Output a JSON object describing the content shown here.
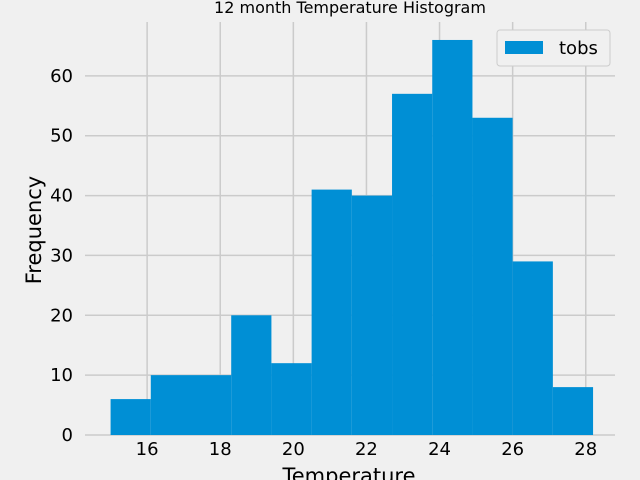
{
  "chart_data": {
    "type": "bar",
    "title": "12 month Temperature Histogram",
    "xlabel": "Temperature",
    "ylabel": "Frequency",
    "bin_edges": [
      15.0,
      16.1,
      17.2,
      18.3,
      19.4,
      20.5,
      21.6,
      22.7,
      23.8,
      24.9,
      26.0,
      27.1,
      28.2
    ],
    "values": [
      6,
      10,
      10,
      20,
      12,
      41,
      40,
      57,
      66,
      53,
      29,
      8
    ],
    "xlim": [
      14.3,
      28.8
    ],
    "ylim": [
      0,
      69
    ],
    "xticks": [
      16,
      18,
      20,
      22,
      24,
      26,
      28
    ],
    "yticks": [
      0,
      10,
      20,
      30,
      40,
      50,
      60
    ],
    "grid": true,
    "legend": {
      "position": "top-right",
      "entries": [
        "tobs"
      ]
    },
    "colors": {
      "bar": "#008fd5",
      "grid": "#cbcbcb",
      "background": "#f0f0f0"
    }
  }
}
